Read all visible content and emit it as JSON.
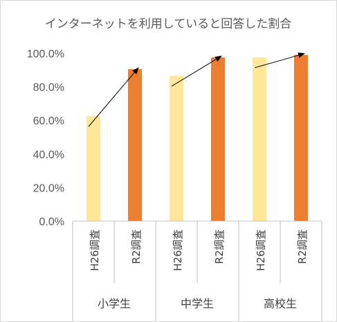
{
  "chart_data": {
    "type": "bar",
    "title": "インターネットを利用していると回答した割合",
    "ylim": [
      0,
      100
    ],
    "yticks": [
      "0.0%",
      "20.0%",
      "40.0%",
      "60.0%",
      "80.0%",
      "100.0%"
    ],
    "grid": false,
    "groups": [
      "小学生",
      "中学生",
      "高校生"
    ],
    "categories": [
      "H26調査",
      "R2調査",
      "H26調査",
      "R2調査",
      "H26調査",
      "R2調査"
    ],
    "values": [
      62.5,
      90.5,
      86.5,
      97.5,
      97.5,
      99.0
    ],
    "bar_colors": [
      "#FFE699",
      "#ED7D31",
      "#FFE699",
      "#ED7D31",
      "#FFE699",
      "#ED7D31"
    ],
    "arrows": [
      {
        "group": "小学生",
        "from": 62.5,
        "to": 90.5
      },
      {
        "group": "中学生",
        "from": 86.5,
        "to": 97.5
      },
      {
        "group": "高校生",
        "from": 97.5,
        "to": 99.0
      }
    ]
  }
}
